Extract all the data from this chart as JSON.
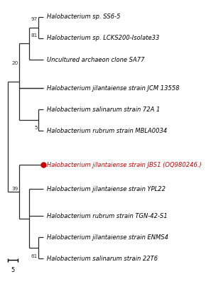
{
  "taxa": [
    "Halobacterium sp. SS6-5",
    "Halobacterium sp. LCKS200-Isolate33",
    "Uncultured archaeon clone SA77",
    "Halobacterium jilantaiense strain JCM 13558",
    "Halobacterium salinarum strain 72A 1",
    "Halobacterium rubrum strain MBLA0034",
    "Halobacterium jilantaiense strain JBS1 (OQ980246.)",
    "Halobacterium jilantaiense strain YPL22",
    "Halobacterium rubrum strain TGN-42-S1",
    "Halobacterium jilantaiense strain ENMS4",
    "Halobacterium salinarum strain 22T6"
  ],
  "highlight_taxon_idx": 6,
  "highlight_color": "#cc0000",
  "tree_color": "#2a2a2a",
  "background_color": "#ffffff",
  "scale_label": "5",
  "font_size": 6.0
}
